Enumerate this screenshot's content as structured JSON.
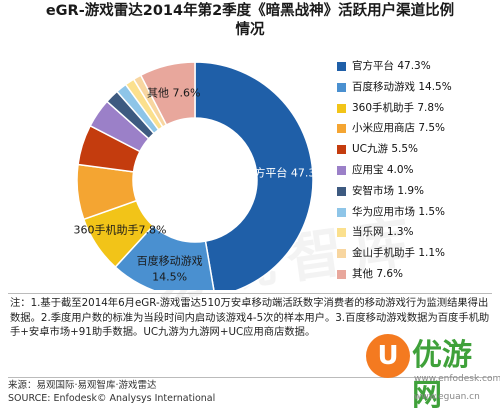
{
  "title_line1": "eGR-游戏雷达2014年第2季度《暗黑战神》活跃用户渠道比例",
  "title_line2": "情况",
  "chart_data": {
    "type": "pie",
    "donut": true,
    "slices": [
      {
        "name": "官方平台",
        "value": 47.3,
        "color": "#1f5fa8",
        "legend": "官方平台 47.3%",
        "label": "官方平台 47.3%",
        "label_color": "#ffffff"
      },
      {
        "name": "百度移动游戏",
        "value": 14.5,
        "color": "#4a90d0",
        "legend": "百度移动游戏 14.5%",
        "label": "百度移动游戏",
        "label2": "14.5%",
        "label_color": "#1a1a1a"
      },
      {
        "name": "360手机助手",
        "value": 7.8,
        "color": "#f2c418",
        "legend": "360手机助手 7.8%",
        "label": "360手机助手7.8%",
        "label_color": "#1a1a1a"
      },
      {
        "name": "小米应用商店",
        "value": 7.5,
        "color": "#f4a532",
        "legend": "小米应用商店 7.5%",
        "label": "",
        "label_color": "#1a1a1a"
      },
      {
        "name": "UC九游",
        "value": 5.5,
        "color": "#c43c0e",
        "legend": "UC九游 5.5%",
        "label": "",
        "label_color": "#1a1a1a"
      },
      {
        "name": "应用宝",
        "value": 4.0,
        "color": "#9b80c8",
        "legend": "应用宝 4.0%",
        "label": "",
        "label_color": "#1a1a1a"
      },
      {
        "name": "安智市场",
        "value": 1.9,
        "color": "#3d5a80",
        "legend": "安智市场 1.9%",
        "label": "",
        "label_color": "#1a1a1a"
      },
      {
        "name": "华为应用市场",
        "value": 1.5,
        "color": "#8ec5e8",
        "legend": "华为应用市场 1.5%",
        "label": "",
        "label_color": "#1a1a1a"
      },
      {
        "name": "当乐网",
        "value": 1.3,
        "color": "#fbe08e",
        "legend": "当乐网 1.3%",
        "label": "",
        "label_color": "#1a1a1a"
      },
      {
        "name": "金山手机助手",
        "value": 1.1,
        "color": "#f8d6a0",
        "legend": "金山手机助手 1.1%",
        "label": "",
        "label_color": "#1a1a1a"
      },
      {
        "name": "其他",
        "value": 7.6,
        "color": "#e8a79c",
        "legend": "其他 7.6%",
        "label": "其他 7.6%",
        "label_color": "#1a1a1a"
      }
    ]
  },
  "note": "注：1.基于截至2014年6月eGR-游戏雷达510万安卓移动端活跃数字消费者的移动游戏行为监测结果得出数据。2.季度用户数的标准为当段时间内启动该游戏4-5次的样本用户。3.百度移动游戏数据为百度手机助手+安卓市场+91助手数据。UC九游为九游网+UC应用商店数据。",
  "source_line1": "来源：易观国际·易观智库·游戏雷达",
  "source_line2": "SOURCE: Enfodesk© Analysys International",
  "watermark_text": "易观智库",
  "logo": {
    "glyph": "U",
    "text": "优游网",
    "sub": "www.enfodesk.com",
    "url": "www.eguan.cn"
  }
}
